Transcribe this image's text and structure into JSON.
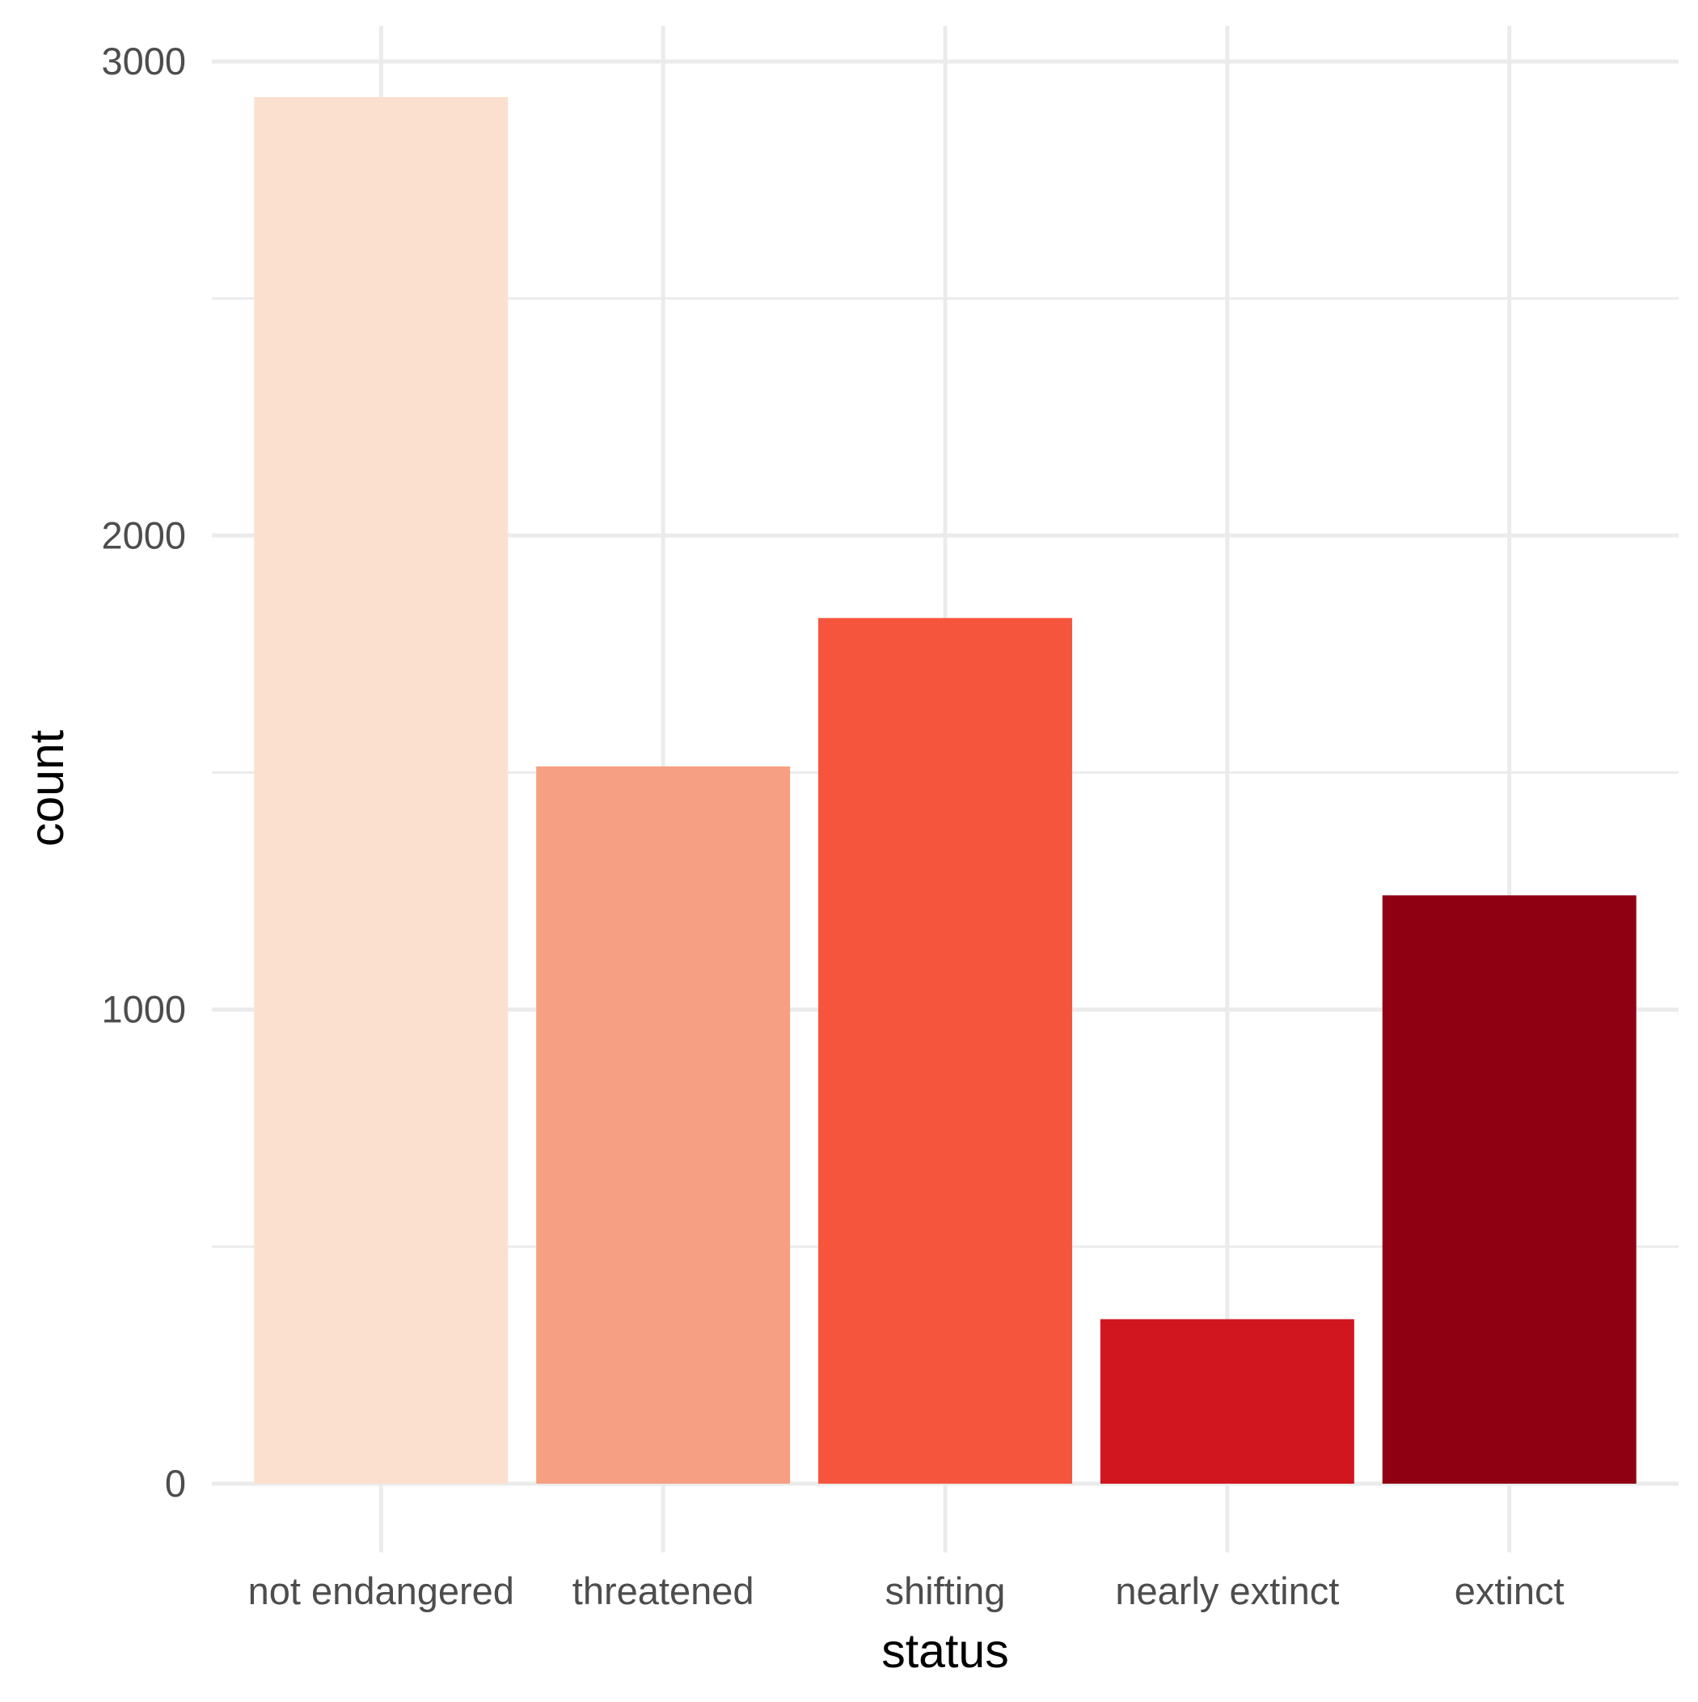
{
  "chart_data": {
    "type": "bar",
    "title": "",
    "xlabel": "status",
    "ylabel": "count",
    "categories": [
      "not endangered",
      "threatened",
      "shifting",
      "nearly extinct",
      "extinct"
    ],
    "values": [
      2925,
      1513,
      1826,
      347,
      1241
    ],
    "colors": [
      "#fbe0d0",
      "#f79f82",
      "#f6553d",
      "#d2161f",
      "#8f0013"
    ],
    "ylim": [
      -145,
      3075
    ],
    "yticks": [
      0,
      1000,
      2000,
      3000
    ],
    "ytick_labels": [
      "0",
      "1000",
      "2000",
      "3000"
    ],
    "y_minor_ticks": [
      500,
      1500,
      2500
    ],
    "grid": true,
    "legend": "none",
    "background": "#ffffff",
    "grid_color": "#ebebeb"
  }
}
